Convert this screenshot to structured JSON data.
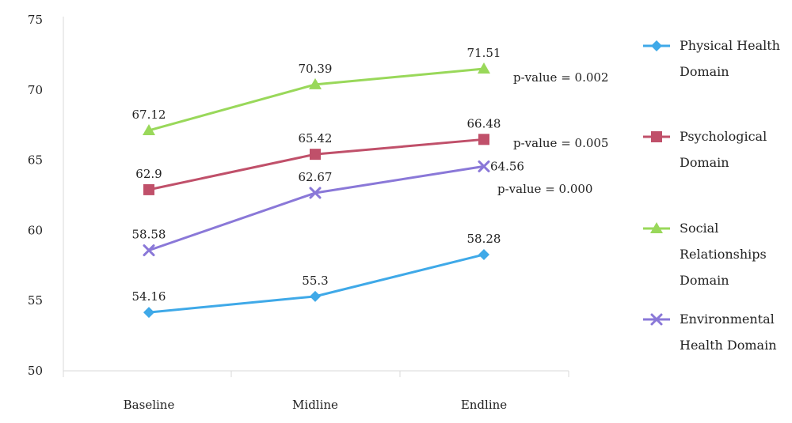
{
  "chart_data": {
    "type": "line",
    "title": "",
    "xlabel": "",
    "ylabel": "",
    "categories": [
      "Baseline",
      "Midline",
      "Endline"
    ],
    "ylim": [
      50,
      75
    ],
    "yticks": [
      50,
      55,
      60,
      65,
      70,
      75
    ],
    "grid": false,
    "legend_position": "right",
    "series": [
      {
        "name": "Physical Health Domain",
        "legend_lines": [
          "Physical Health",
          "Domain"
        ],
        "values": [
          54.16,
          55.3,
          58.28
        ],
        "labels": [
          "54.16",
          "55.3",
          "58.28"
        ],
        "color": "#3fa9e8",
        "marker": "diamond",
        "annotation": ""
      },
      {
        "name": "Psychological Domain",
        "legend_lines": [
          "Psychological",
          "Domain"
        ],
        "values": [
          62.9,
          65.42,
          66.48
        ],
        "labels": [
          "62.9",
          "65.42",
          "66.48"
        ],
        "color": "#c0506a",
        "marker": "square",
        "annotation": "p-value = 0.005"
      },
      {
        "name": "Social Relationships Domain",
        "legend_lines": [
          "Social",
          "Relationships",
          "Domain"
        ],
        "values": [
          67.12,
          70.39,
          71.51
        ],
        "labels": [
          "67.12",
          "70.39",
          "71.51"
        ],
        "color": "#99d85a",
        "marker": "triangle",
        "annotation": "p-value = 0.002"
      },
      {
        "name": "Environmental Health Domain",
        "legend_lines": [
          "Environmental",
          "Health Domain"
        ],
        "values": [
          58.58,
          62.67,
          64.56
        ],
        "labels": [
          "58.58",
          "62.67",
          "64.56"
        ],
        "color": "#8a78d8",
        "marker": "x",
        "annotation": "p-value = 0.000"
      }
    ]
  }
}
